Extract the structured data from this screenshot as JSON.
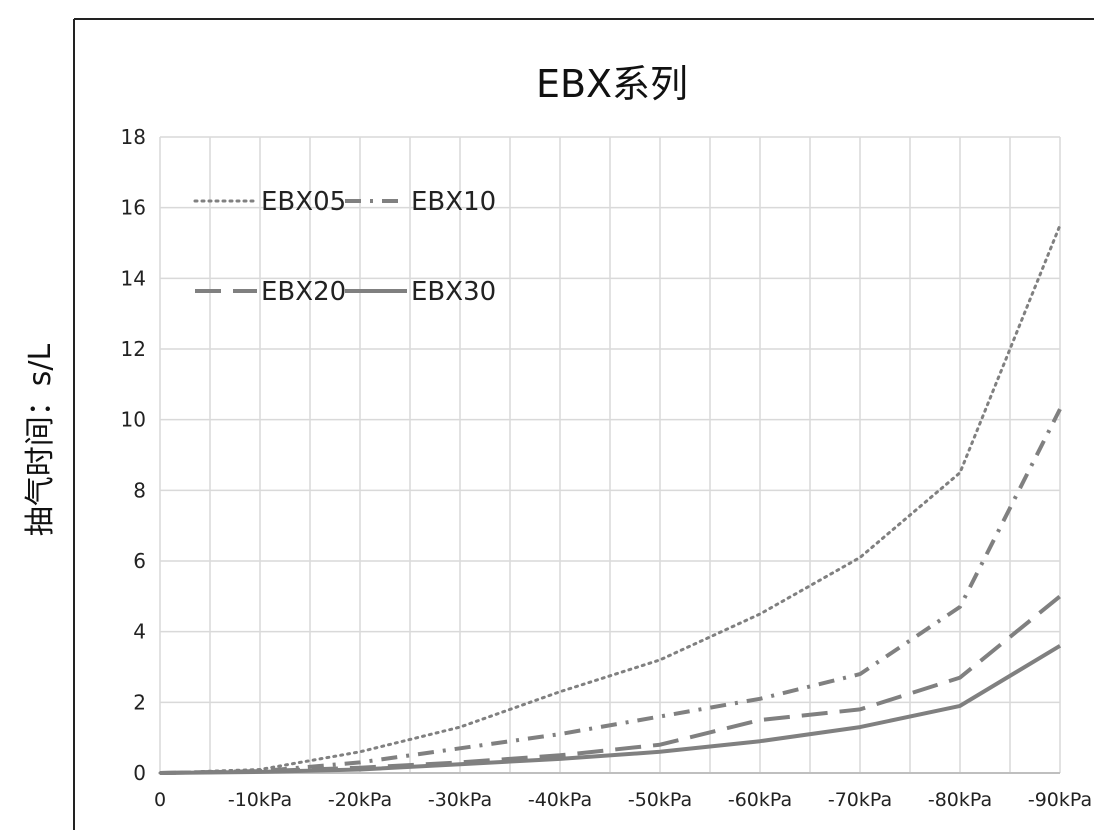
{
  "chart_data": {
    "type": "line",
    "title": "EBX系列",
    "xlabel": "",
    "ylabel": "抽气时间：s/L",
    "categories": [
      "0",
      "-10kPa",
      "-20kPa",
      "-30kPa",
      "-40kPa",
      "-50kPa",
      "-60kPa",
      "-70kPa",
      "-80kPa",
      "-90kPa"
    ],
    "ylim": [
      0,
      18
    ],
    "yticks": [
      "0",
      "2",
      "4",
      "6",
      "8",
      "10",
      "12",
      "14",
      "16",
      "18"
    ],
    "grid": true,
    "legend_position": "top-left",
    "series": [
      {
        "name": "EBX05",
        "style": "dotted",
        "color": "#808080",
        "values": [
          0,
          0.1,
          0.6,
          1.3,
          2.3,
          3.2,
          4.5,
          6.1,
          8.5,
          15.5
        ]
      },
      {
        "name": "EBX10",
        "style": "dash-dot",
        "color": "#808080",
        "values": [
          0,
          0.05,
          0.3,
          0.7,
          1.1,
          1.6,
          2.1,
          2.8,
          4.7,
          10.3
        ]
      },
      {
        "name": "EBX20",
        "style": "long-dash",
        "color": "#808080",
        "values": [
          0,
          0.05,
          0.15,
          0.3,
          0.5,
          0.8,
          1.5,
          1.8,
          2.7,
          5.0
        ]
      },
      {
        "name": "EBX30",
        "style": "solid",
        "color": "#808080",
        "values": [
          0,
          0.03,
          0.1,
          0.25,
          0.4,
          0.6,
          0.9,
          1.3,
          1.9,
          3.6
        ]
      }
    ]
  }
}
